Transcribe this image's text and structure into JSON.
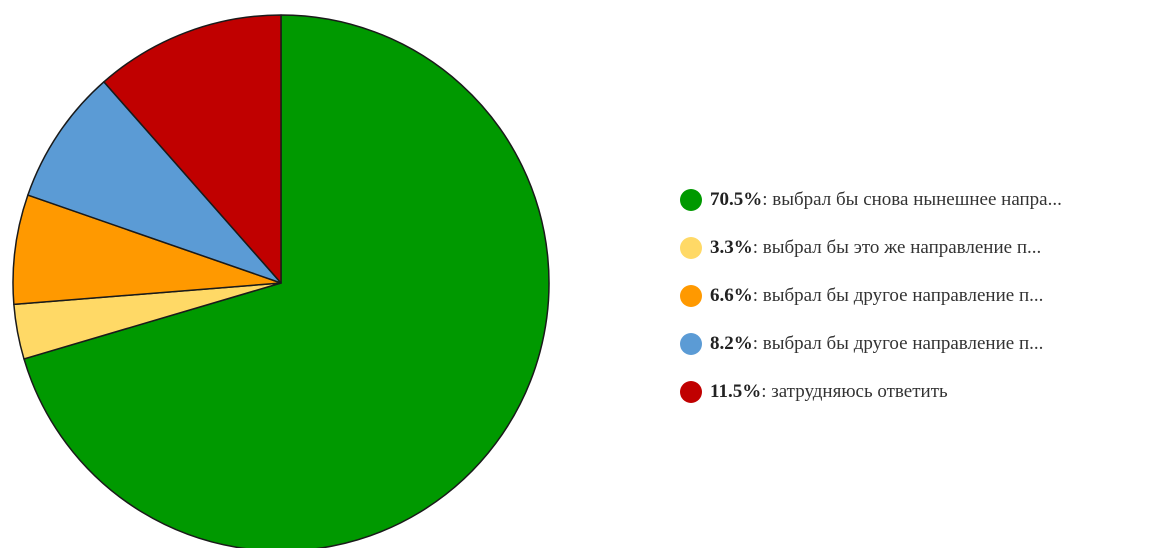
{
  "chart_data": {
    "type": "pie",
    "slices": [
      {
        "value": 70.5,
        "label": "выбрал бы снова нынешнее напра...",
        "color": "#009900"
      },
      {
        "value": 3.3,
        "label": "выбрал бы это же направление п...",
        "color": "#ffd966"
      },
      {
        "value": 6.6,
        "label": "выбрал бы другое направление п...",
        "color": "#ff9900"
      },
      {
        "value": 8.2,
        "label": "выбрал бы другое направление п...",
        "color": "#5b9bd5"
      },
      {
        "value": 11.5,
        "label": "затрудняюсь ответить",
        "color": "#c00000"
      }
    ],
    "legend_position": "right",
    "start_angle_deg": 0,
    "direction": "clockwise"
  },
  "legend": {
    "items": [
      {
        "pct": "70.5%",
        "text": ": выбрал бы снова нынешнее напра..."
      },
      {
        "pct": "3.3%",
        "text": ": выбрал бы это же направление п..."
      },
      {
        "pct": "6.6%",
        "text": ": выбрал бы другое направление п..."
      },
      {
        "pct": "8.2%",
        "text": ": выбрал бы другое направление п..."
      },
      {
        "pct": "11.5%",
        "text": ": затрудняюсь ответить"
      }
    ]
  }
}
